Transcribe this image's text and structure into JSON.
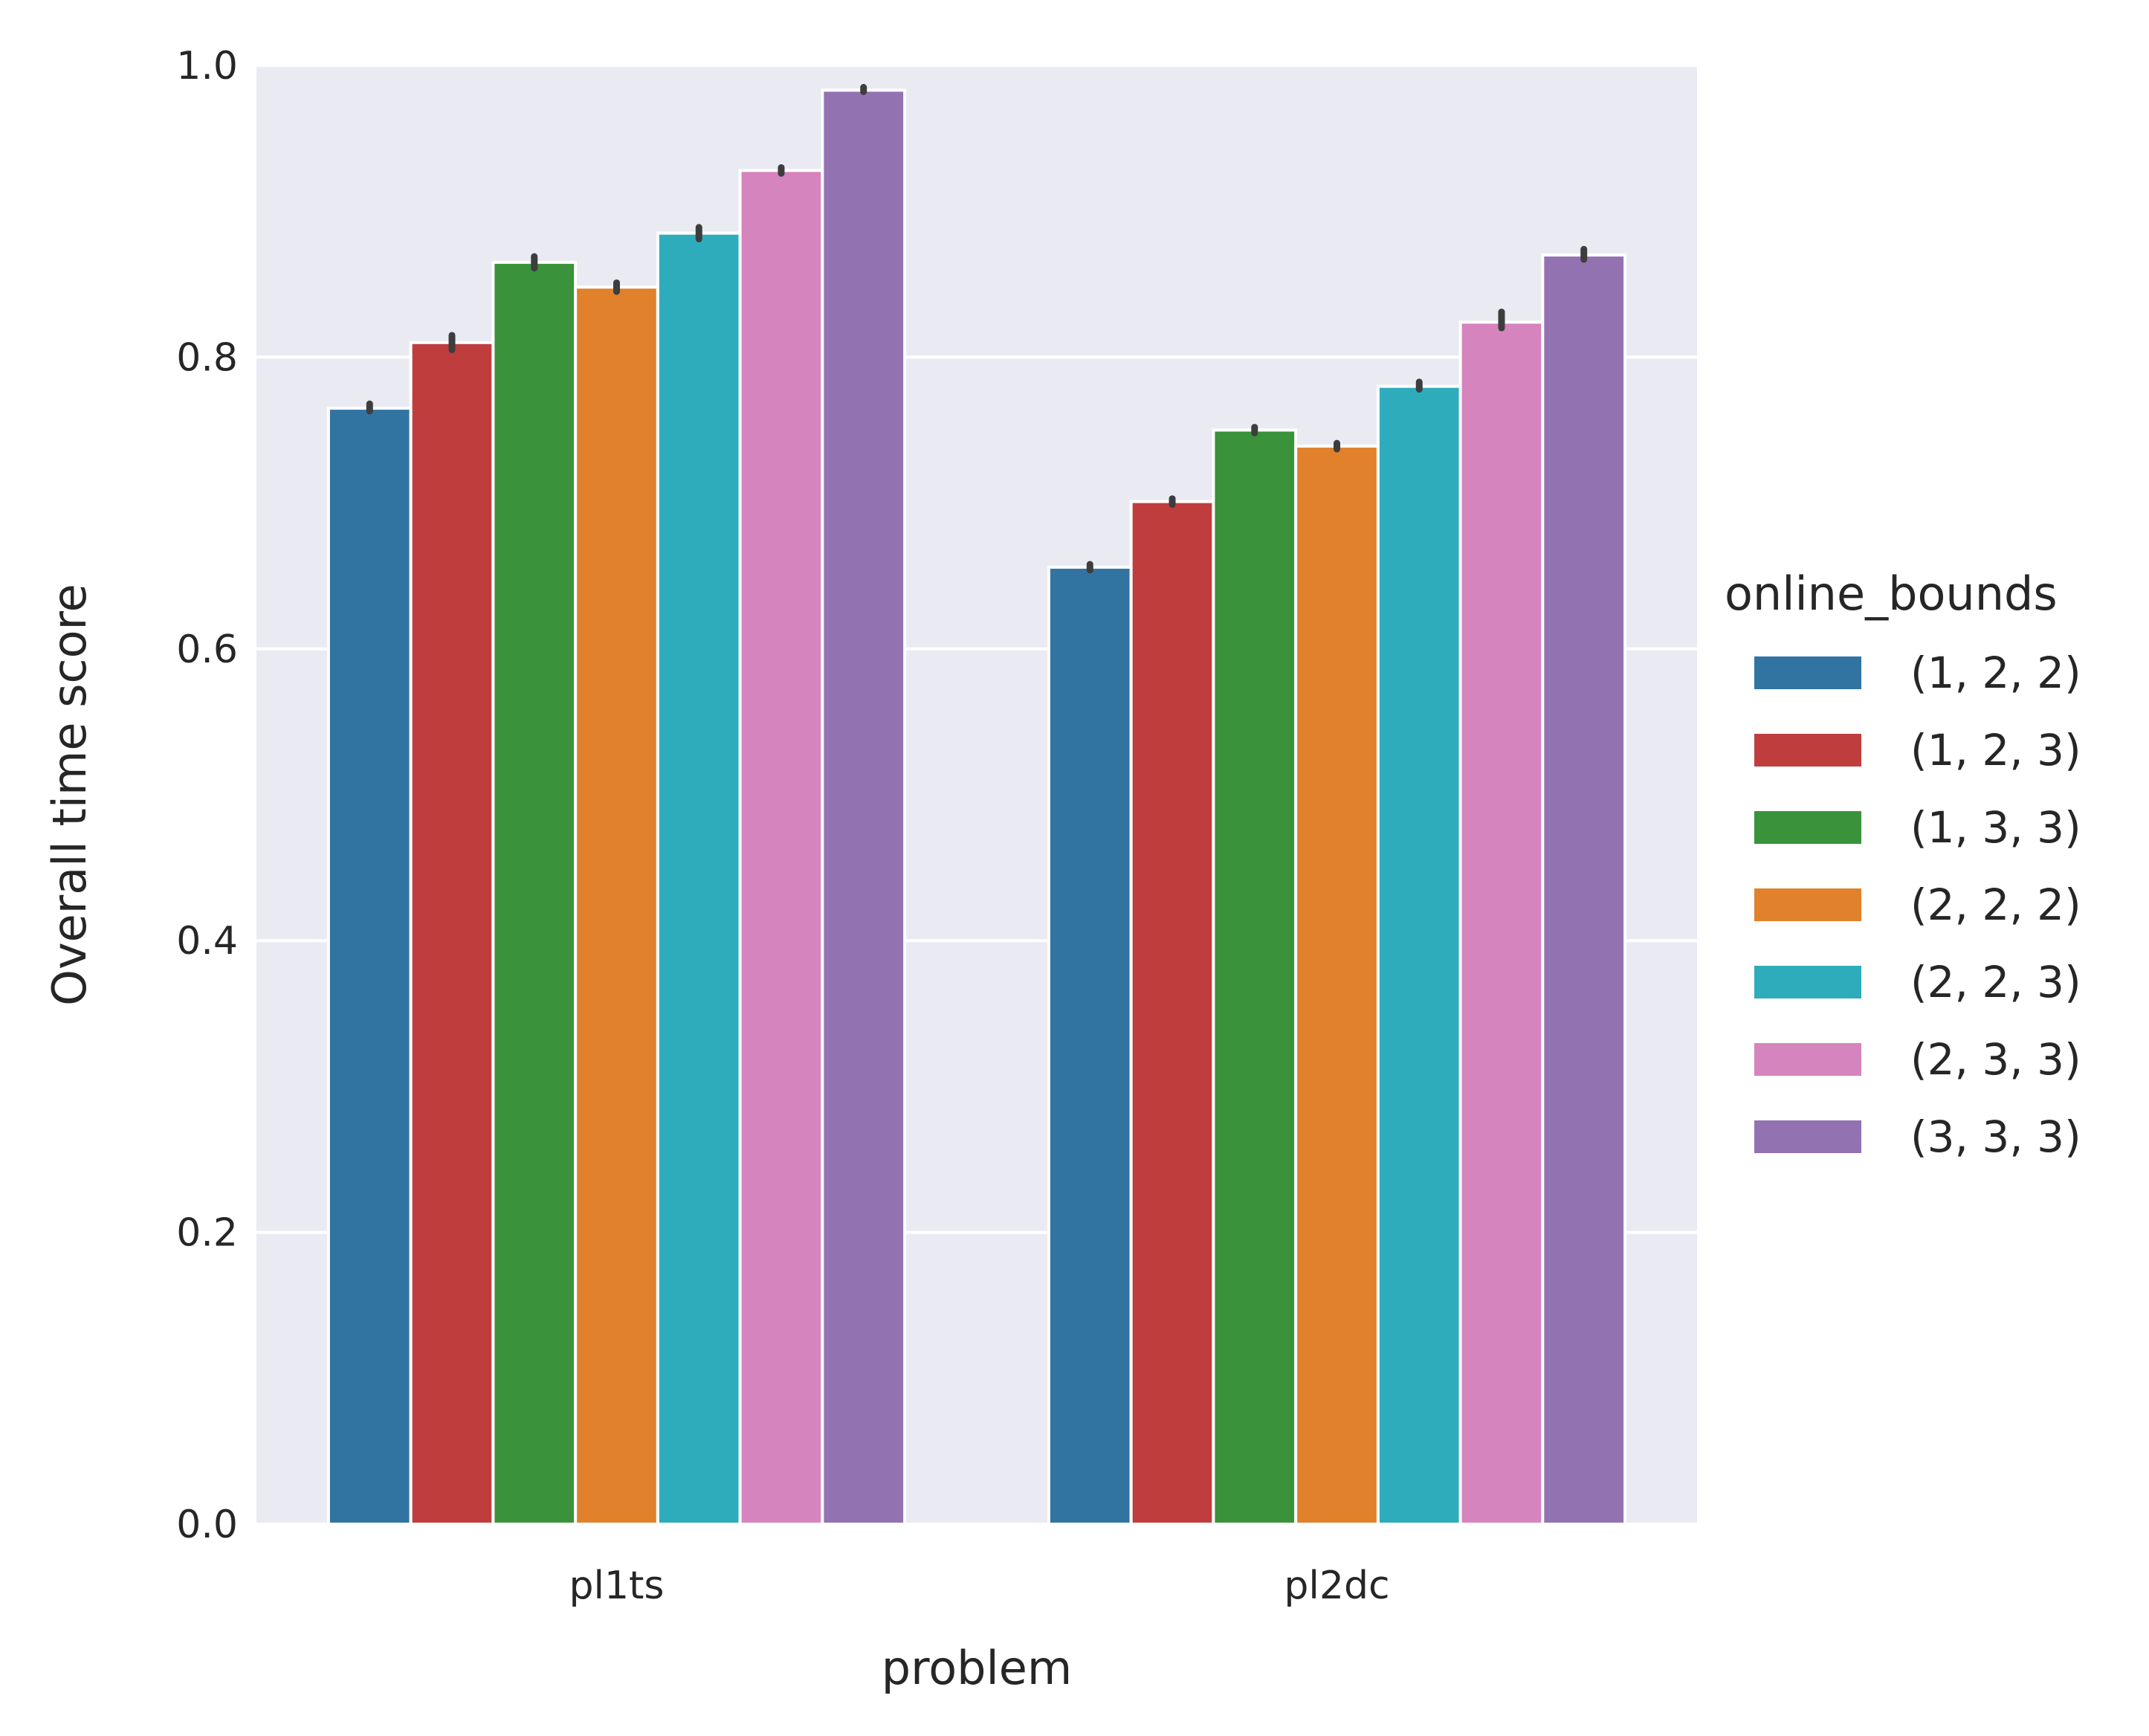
{
  "chart_data": {
    "type": "bar",
    "title": "",
    "xlabel": "problem",
    "ylabel": "Overall time score",
    "ylim": [
      0,
      1.0
    ],
    "yticks": [
      "0.0",
      "0.2",
      "0.4",
      "0.6",
      "0.8",
      "1.0"
    ],
    "grid": true,
    "categories": [
      "pl1ts",
      "pl2dc"
    ],
    "legend": {
      "title": "online_bounds",
      "placement": "right outside"
    },
    "series": [
      {
        "name": "(1, 2, 2)",
        "color": "#3274a1",
        "values": [
          0.765,
          0.656
        ]
      },
      {
        "name": "(1, 2, 3)",
        "color": "#c03d3e",
        "values": [
          0.81,
          0.701
        ]
      },
      {
        "name": "(1, 3, 3)",
        "color": "#3a923a",
        "values": [
          0.865,
          0.75
        ]
      },
      {
        "name": "(2, 2, 2)",
        "color": "#e1812c",
        "values": [
          0.848,
          0.739
        ]
      },
      {
        "name": "(2, 2, 3)",
        "color": "#2eacbc",
        "values": [
          0.885,
          0.78
        ]
      },
      {
        "name": "(2, 3, 3)",
        "color": "#d684bd",
        "values": [
          0.928,
          0.824
        ]
      },
      {
        "name": "(3, 3, 3)",
        "color": "#9372b2",
        "values": [
          0.983,
          0.87
        ]
      }
    ],
    "error_bars": [
      [
        [
          0.763,
          0.768
        ],
        [
          0.654,
          0.658
        ]
      ],
      [
        [
          0.805,
          0.815
        ],
        [
          0.699,
          0.703
        ]
      ],
      [
        [
          0.861,
          0.869
        ],
        [
          0.748,
          0.752
        ]
      ],
      [
        [
          0.845,
          0.851
        ],
        [
          0.737,
          0.741
        ]
      ],
      [
        [
          0.881,
          0.889
        ],
        [
          0.778,
          0.783
        ]
      ],
      [
        [
          0.926,
          0.93
        ],
        [
          0.82,
          0.831
        ]
      ],
      [
        [
          0.982,
          0.985
        ],
        [
          0.867,
          0.874
        ]
      ]
    ],
    "colors": {
      "background": "#eaeaf2",
      "grid": "#ffffff",
      "errorbar": "#3d3d3d"
    }
  }
}
